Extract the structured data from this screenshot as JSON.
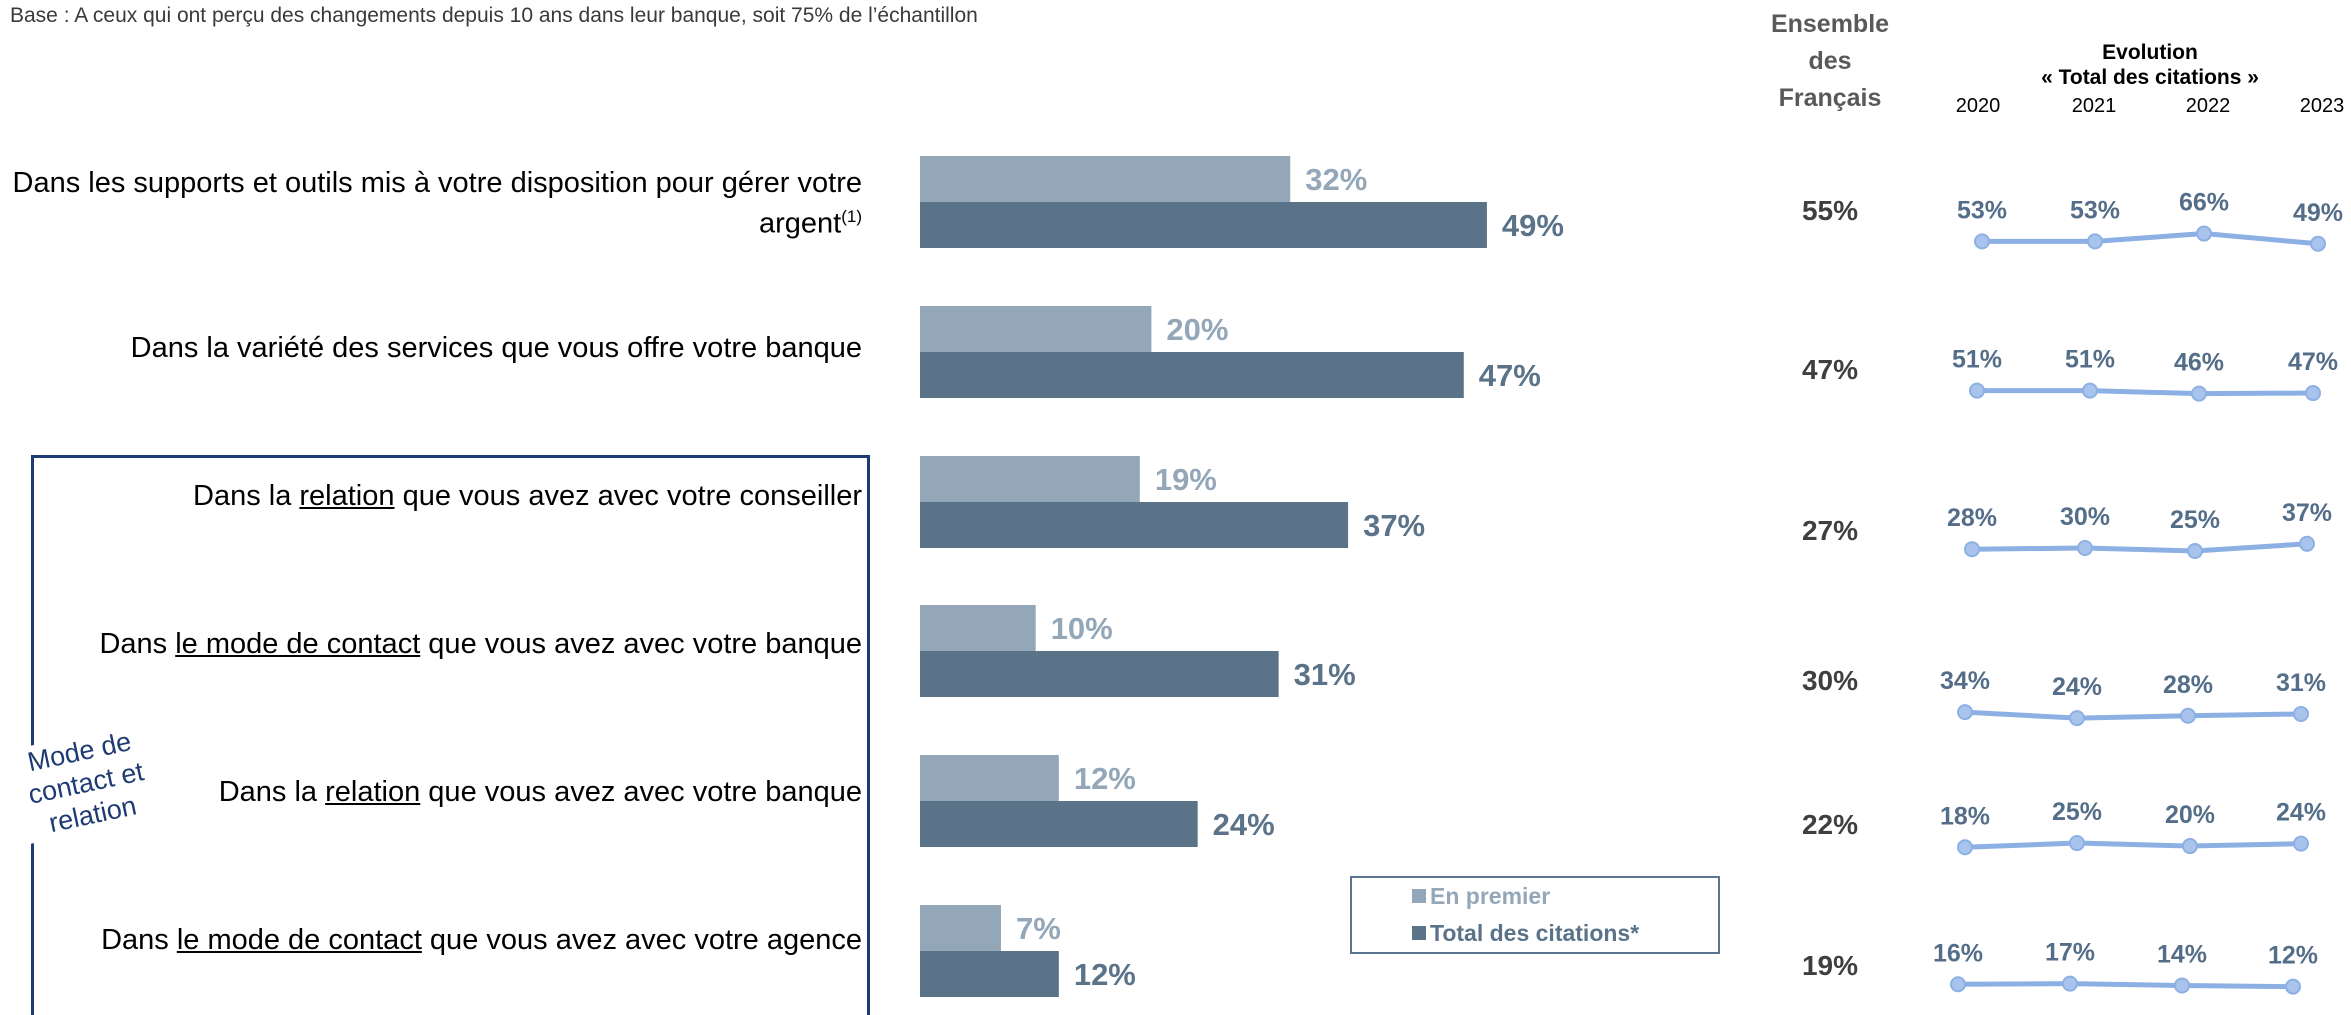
{
  "base_note": "Base : A ceux qui ont perçu des changements depuis 10 ans dans leur banque, soit 75% de l’échantillon",
  "header_ensemble": [
    "Ensemble",
    "des",
    "Français"
  ],
  "header_evolution": [
    "Evolution",
    "« Total des citations »"
  ],
  "years": [
    "2020",
    "2021",
    "2022",
    "2023"
  ],
  "group_label": "Mode de contact et relation",
  "legend": {
    "en_premier": "En premier",
    "total_citations": "Total des citations*"
  },
  "colors": {
    "en_premier": "#93a7b9",
    "total_citations": "#5a7389",
    "line": "#8db0e4",
    "group_border": "#1f3b73"
  },
  "categories": [
    {
      "pre": "Dans les supports et outils mis à votre disposition pour gérer votre argent",
      "underline": "",
      "post": "",
      "sup": "(1)"
    },
    {
      "pre": "Dans la variété des services que vous offre votre banque",
      "underline": "",
      "post": "",
      "sup": ""
    },
    {
      "pre": "Dans la ",
      "underline": "relation",
      "post": " que vous avez avec votre conseiller",
      "sup": ""
    },
    {
      "pre": "Dans ",
      "underline": "le mode de contact",
      "post": " que vous avez avec votre banque",
      "sup": ""
    },
    {
      "pre": "Dans la ",
      "underline": "relation",
      "post": " que vous avez avec votre banque",
      "sup": ""
    },
    {
      "pre": "Dans ",
      "underline": "le mode de contact",
      "post": " que vous avez avec votre agence",
      "sup": ""
    }
  ],
  "ensemble_values": [
    "55%",
    "47%",
    "27%",
    "30%",
    "22%",
    "19%"
  ],
  "chart_data": [
    {
      "type": "bar",
      "orientation": "horizontal",
      "categories": [
        "Dans les supports et outils mis à votre disposition pour gérer votre argent(1)",
        "Dans la variété des services que vous offre votre banque",
        "Dans la relation que vous avez avec votre conseiller",
        "Dans le mode de contact que vous avez avec votre banque",
        "Dans la relation que vous avez avec votre banque",
        "Dans le mode de contact que vous avez avec votre agence"
      ],
      "series": [
        {
          "name": "En premier",
          "values": [
            32,
            20,
            19,
            10,
            12,
            7
          ],
          "labels": [
            "32%",
            "20%",
            "19%",
            "10%",
            "12%",
            "7%"
          ]
        },
        {
          "name": "Total des citations*",
          "values": [
            49,
            47,
            37,
            31,
            24,
            12
          ],
          "labels": [
            "49%",
            "47%",
            "37%",
            "31%",
            "24%",
            "12%"
          ]
        }
      ],
      "xlim": [
        0,
        100
      ],
      "legend_position": "bottom-right"
    },
    {
      "type": "line",
      "x": [
        "2020",
        "2021",
        "2022",
        "2023"
      ],
      "series": [
        {
          "values": [
            53,
            53,
            66,
            49
          ],
          "labels": [
            "53%",
            "53%",
            "66%",
            "49%"
          ]
        },
        {
          "values": [
            51,
            51,
            46,
            47
          ],
          "labels": [
            "51%",
            "51%",
            "46%",
            "47%"
          ]
        },
        {
          "values": [
            28,
            30,
            25,
            37
          ],
          "labels": [
            "28%",
            "30%",
            "25%",
            "37%"
          ]
        },
        {
          "values": [
            34,
            24,
            28,
            31
          ],
          "labels": [
            "34%",
            "24%",
            "28%",
            "31%"
          ]
        },
        {
          "values": [
            18,
            25,
            20,
            24
          ],
          "labels": [
            "18%",
            "25%",
            "20%",
            "24%"
          ]
        },
        {
          "values": [
            16,
            17,
            14,
            12
          ],
          "labels": [
            "16%",
            "17%",
            "14%",
            "12%"
          ]
        }
      ]
    }
  ]
}
